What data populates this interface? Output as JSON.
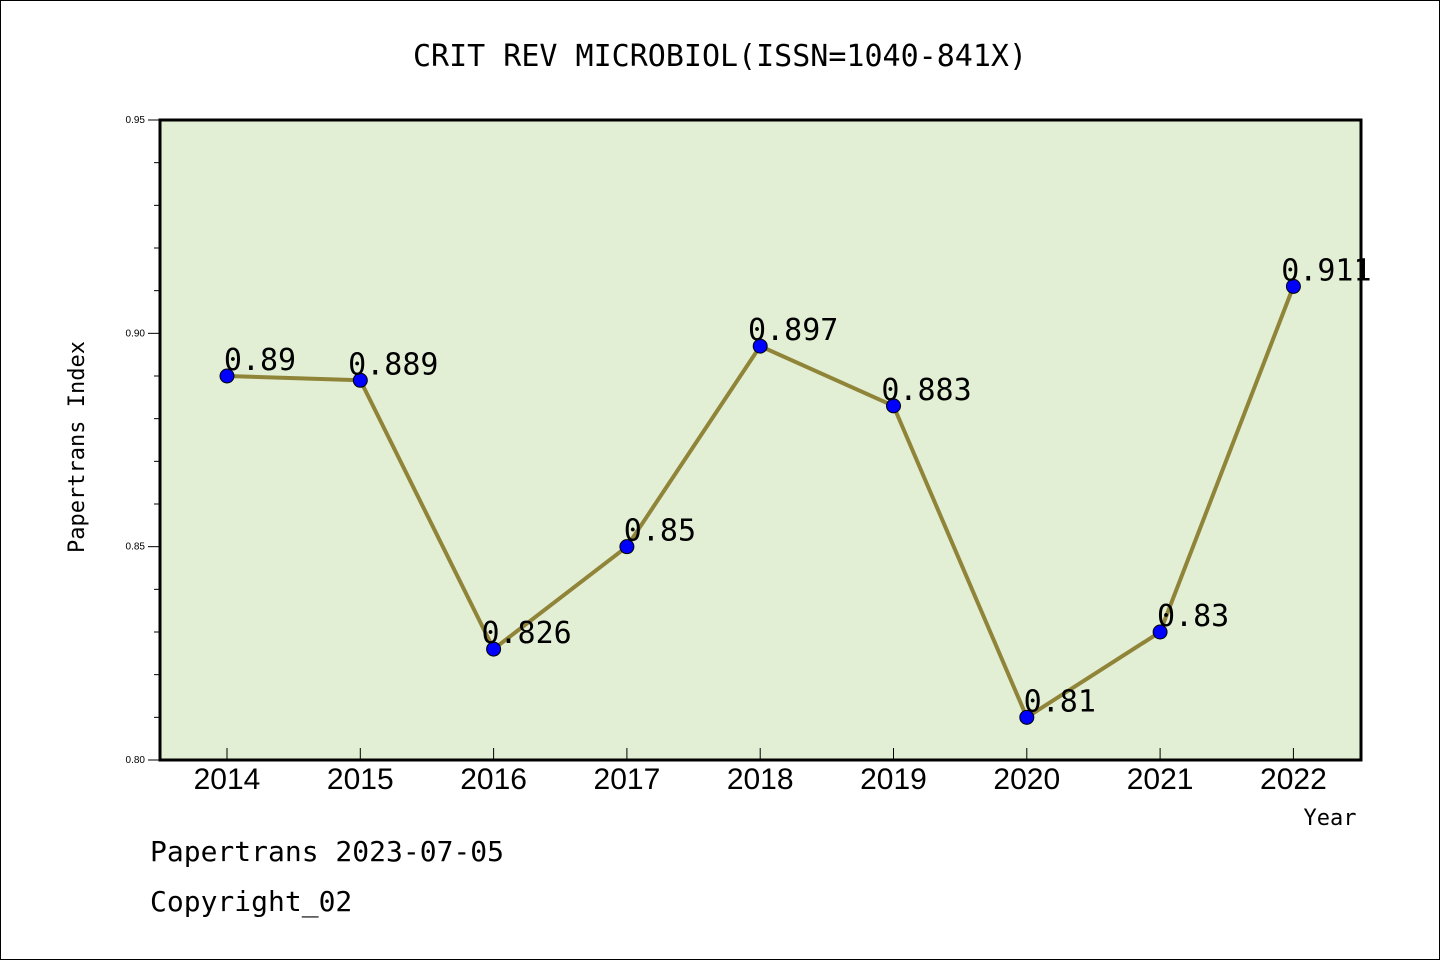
{
  "chart_data": {
    "type": "line",
    "title": "CRIT REV MICROBIOL(ISSN=1040-841X)",
    "xlabel": "Year",
    "ylabel": "Papertrans Index",
    "categories": [
      "2014",
      "2015",
      "2016",
      "2017",
      "2018",
      "2019",
      "2020",
      "2021",
      "2022"
    ],
    "values": [
      0.89,
      0.889,
      0.826,
      0.85,
      0.897,
      0.883,
      0.81,
      0.83,
      0.911
    ],
    "data_labels": [
      "0.89",
      "0.889",
      "0.826",
      "0.85",
      "0.897",
      "0.883",
      "0.81",
      "0.83",
      "0.911"
    ],
    "ylim": [
      0.8,
      0.95
    ],
    "yticks": [
      0.8,
      0.85,
      0.9,
      0.95
    ],
    "ytick_labels": [
      "0.80",
      "0.85",
      "0.90",
      "0.95"
    ],
    "grid": false,
    "colors": {
      "plot_bg": "#e2efd5",
      "line": "#8f8438",
      "marker": "#0000ff"
    }
  },
  "footer": {
    "date_line": "Papertrans 2023-07-05",
    "copyright": "Copyright_02"
  }
}
